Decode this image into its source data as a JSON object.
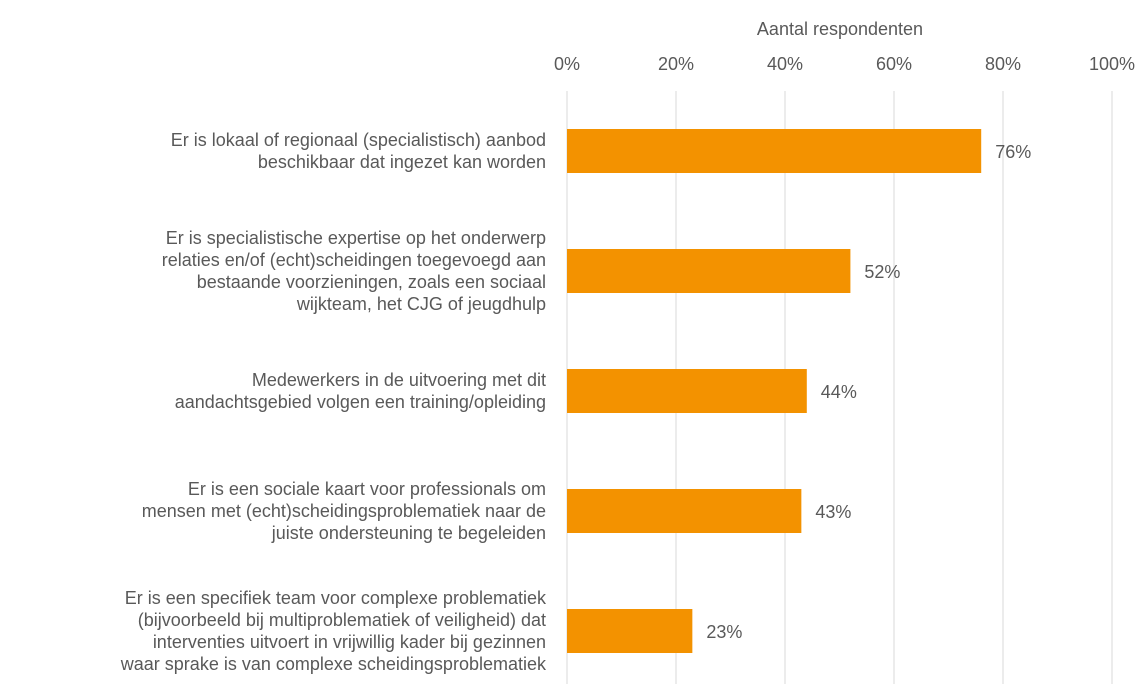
{
  "chart_data": {
    "type": "bar",
    "orientation": "horizontal",
    "xlabel": "Aantal respondenten",
    "categories": [
      "Er is lokaal of regionaal (specialistisch) aanbod\nbeschikbaar dat ingezet kan worden",
      "Er is specialistische expertise op het onderwerp\nrelaties en/of (echt)scheidingen toegevoegd aan\nbestaande voorzieningen, zoals een sociaal\nwijkteam, het CJG of jeugdhulp",
      "Medewerkers in de uitvoering met dit\naandachtsgebied volgen een training/opleiding",
      "Er is een sociale kaart voor professionals om\nmensen met (echt)scheidingsproblematiek naar de\njuiste ondersteuning te begeleiden",
      "Er is een specifiek team voor complexe problematiek\n(bijvoorbeeld bij multiproblematiek of veiligheid) dat\ninterventies uitvoert in vrijwillig kader bij gezinnen\nwaar sprake is van complexe scheidingsproblematiek"
    ],
    "values": [
      76,
      52,
      44,
      43,
      23
    ],
    "value_labels": [
      "76%",
      "52%",
      "44%",
      "43%",
      "23%"
    ],
    "color": "#f39200",
    "xlim": [
      0,
      100
    ],
    "xticks": [
      {
        "value": 0,
        "label": "0%"
      },
      {
        "value": 20,
        "label": "20%"
      },
      {
        "value": 40,
        "label": "40%"
      },
      {
        "value": 60,
        "label": "60%"
      },
      {
        "value": 80,
        "label": "80%"
      },
      {
        "value": 100,
        "label": "100%"
      }
    ],
    "grid": true
  }
}
